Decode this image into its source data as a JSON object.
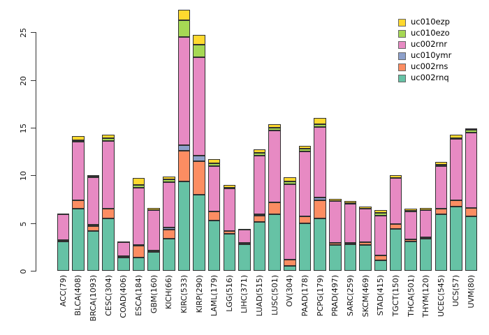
{
  "figure": {
    "background": "#ffffff",
    "axis_color": "#333333",
    "segment_border_color": "#303030"
  },
  "legend": {
    "position": "top-right",
    "items": [
      {
        "label": "uc010ezp",
        "color": "#FFD92F"
      },
      {
        "label": "uc010ezo",
        "color": "#A6D854"
      },
      {
        "label": "uc002rnr",
        "color": "#E78AC3"
      },
      {
        "label": "uc010ymr",
        "color": "#8DA0CB"
      },
      {
        "label": "uc002rns",
        "color": "#FC8D62"
      },
      {
        "label": "uc002rnq",
        "color": "#66C2A5"
      }
    ]
  },
  "chart_data": {
    "type": "bar",
    "stacked": true,
    "title": "",
    "xlabel": "",
    "ylabel": "",
    "grid": false,
    "ylim": [
      0,
      27.5
    ],
    "yticks": [
      0,
      5,
      10,
      15,
      20,
      25
    ],
    "ytick_labels": [
      "0",
      "5",
      "10",
      "15",
      "20",
      "25"
    ],
    "legend_order_top_to_bottom": [
      "uc010ezp",
      "uc010ezo",
      "uc002rnr",
      "uc010ymr",
      "uc002rns",
      "uc002rnq"
    ],
    "stack_order_bottom_to_top": [
      "uc002rnq",
      "uc002rns",
      "uc010ymr",
      "uc002rnr",
      "uc010ezo",
      "uc010ezp"
    ],
    "categories": [
      "ACC(79)",
      "BLCA(408)",
      "BRCA(1093)",
      "CESC(304)",
      "COAD(406)",
      "ESCA(184)",
      "GBM(160)",
      "KICH(66)",
      "KIRC(533)",
      "KIRP(290)",
      "LAML(179)",
      "LGG(516)",
      "LIHC(371)",
      "LUAD(515)",
      "LUSC(501)",
      "OV(304)",
      "PAAD(178)",
      "PCPG(179)",
      "PRAD(497)",
      "SARC(259)",
      "SKCM(469)",
      "STAD(415)",
      "TGCT(150)",
      "THCA(501)",
      "THYM(120)",
      "UCEC(545)",
      "UCS(57)",
      "UVM(80)"
    ],
    "series": [
      {
        "name": "uc002rnq",
        "color": "#66C2A5",
        "values": [
          3.1,
          6.5,
          4.2,
          5.5,
          1.4,
          1.4,
          2.0,
          3.4,
          9.4,
          8.0,
          5.3,
          3.9,
          2.8,
          5.1,
          5.9,
          0.5,
          5.0,
          5.5,
          2.7,
          2.8,
          2.7,
          1.1,
          4.4,
          3.1,
          3.4,
          5.9,
          6.7,
          5.7
        ]
      },
      {
        "name": "uc002rns",
        "color": "#FC8D62",
        "values": [
          0.1,
          0.9,
          0.5,
          1.0,
          0.1,
          1.2,
          0.1,
          0.9,
          3.2,
          3.5,
          0.9,
          0.3,
          0.1,
          0.7,
          1.3,
          0.7,
          0.7,
          1.9,
          0.2,
          0.1,
          0.3,
          0.5,
          0.5,
          0.2,
          0.1,
          0.6,
          0.7,
          0.9
        ]
      },
      {
        "name": "uc010ymr",
        "color": "#8DA0CB",
        "values": [
          0.0,
          0.0,
          0.1,
          0.0,
          0.0,
          0.1,
          0.0,
          0.2,
          0.6,
          0.6,
          0.0,
          0.0,
          0.0,
          0.1,
          0.0,
          0.0,
          0.0,
          0.3,
          0.0,
          0.0,
          0.0,
          0.0,
          0.0,
          0.0,
          0.0,
          0.0,
          0.0,
          0.0
        ]
      },
      {
        "name": "uc002rnr",
        "color": "#E78AC3",
        "values": [
          2.7,
          6.1,
          5.0,
          7.1,
          1.5,
          6.0,
          4.3,
          4.8,
          11.3,
          10.3,
          4.8,
          4.4,
          1.4,
          6.2,
          7.5,
          7.9,
          6.8,
          7.4,
          4.4,
          4.1,
          3.5,
          4.2,
          4.8,
          2.9,
          2.9,
          4.5,
          6.4,
          7.9
        ]
      },
      {
        "name": "uc010ezo",
        "color": "#A6D854",
        "values": [
          0.0,
          0.2,
          0.1,
          0.3,
          0.0,
          0.3,
          0.0,
          0.3,
          1.8,
          1.3,
          0.3,
          0.1,
          0.0,
          0.3,
          0.3,
          0.3,
          0.3,
          0.3,
          0.0,
          0.1,
          0.0,
          0.3,
          0.0,
          0.1,
          0.0,
          0.1,
          0.1,
          0.3
        ]
      },
      {
        "name": "uc010ezp",
        "color": "#FFD92F",
        "values": [
          0.1,
          0.4,
          0.1,
          0.4,
          0.1,
          0.7,
          0.2,
          0.3,
          1.1,
          1.0,
          0.4,
          0.3,
          0.1,
          0.3,
          0.4,
          0.4,
          0.3,
          0.6,
          0.2,
          0.2,
          0.2,
          0.3,
          0.3,
          0.2,
          0.2,
          0.3,
          0.4,
          0.1
        ]
      }
    ],
    "totals": [
      6.0,
      14.1,
      10.0,
      14.3,
      3.1,
      9.7,
      6.6,
      9.9,
      27.4,
      24.7,
      11.7,
      9.0,
      4.4,
      12.7,
      15.4,
      9.8,
      13.1,
      16.0,
      7.5,
      7.3,
      6.7,
      6.4,
      10.0,
      6.5,
      6.6,
      11.4,
      14.3,
      14.9
    ]
  }
}
